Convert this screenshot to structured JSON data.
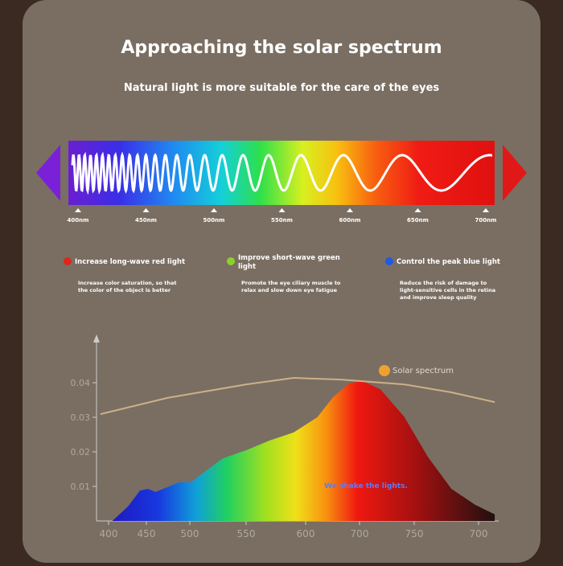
{
  "header": {
    "title": "Approaching the solar spectrum",
    "subtitle": "Natural light is more suitable for the care of the eyes"
  },
  "spectrum_bar": {
    "labels": [
      "400nm",
      "450nm",
      "500nm",
      "550nm",
      "600nm",
      "650nm",
      "700nm"
    ]
  },
  "features": [
    {
      "heading": "Increase long-wave red light",
      "text": "Increase color saturation, so that the color of the object is better",
      "color": "#e0241c"
    },
    {
      "heading": "Improve short-wave green light",
      "text": "Promote the eye ciliary muscle to relax and slow down eye fatigue",
      "color": "#8ed02a"
    },
    {
      "heading": "Control the peak blue light",
      "text": "Reduce the risk of damage to light-sensitive cells in the retina and improve sleep quality",
      "color": "#1e5ae6"
    }
  ],
  "chart_data": {
    "type": "area",
    "x_tick_labels": [
      "400",
      "450",
      "500",
      "550",
      "600",
      "700",
      "750",
      "700"
    ],
    "xlim": [
      372,
      780
    ],
    "ylim": [
      0,
      0.05
    ],
    "yticks": [
      0.01,
      0.02,
      0.03,
      0.04
    ],
    "series": [
      {
        "name": "We shake the lights.",
        "x": [
          388,
          404,
          416,
          424,
          432,
          444,
          456,
          468,
          484,
          500,
          524,
          548,
          572,
          596,
          612,
          628,
          642,
          660,
          684,
          708,
          732,
          756,
          776
        ],
        "values": [
          0,
          0.0042,
          0.0088,
          0.0093,
          0.0084,
          0.0098,
          0.0112,
          0.0112,
          0.0147,
          0.0181,
          0.0205,
          0.0233,
          0.0256,
          0.03,
          0.0358,
          0.0398,
          0.0405,
          0.0381,
          0.0302,
          0.0186,
          0.0093,
          0.0047,
          0.0019
        ]
      },
      {
        "name": "Solar spectrum",
        "color": "#cdb088",
        "x": [
          376,
          444,
          524,
          572,
          620,
          684,
          732,
          776
        ],
        "values": [
          0.0309,
          0.0356,
          0.0395,
          0.0414,
          0.0409,
          0.0395,
          0.0372,
          0.0344
        ]
      }
    ]
  }
}
